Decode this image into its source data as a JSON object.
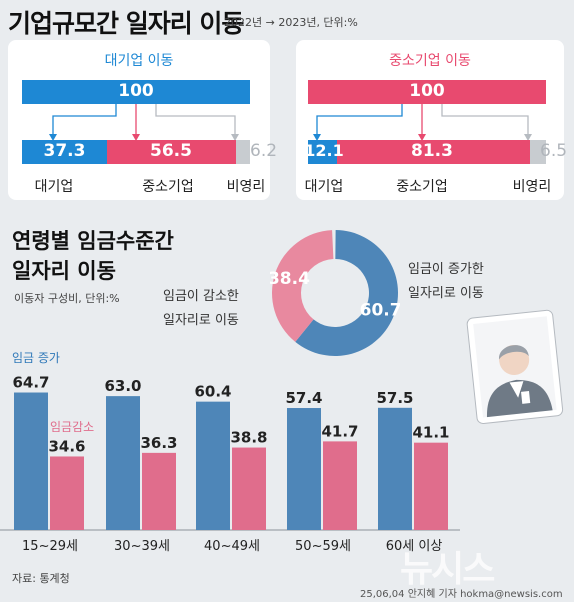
{
  "header": {
    "title": "기업규모간 일자리 이동",
    "subtitle": "2022년 → 2023년, 단위:%"
  },
  "colors": {
    "blue": "#1e88d4",
    "pink": "#e84a6f",
    "grey": "#c8ccd0",
    "steel_blue": "#4e86b8",
    "rose": "#e06d8c",
    "rose_light": "#e8899f"
  },
  "panels": [
    {
      "title": "대기업 이동",
      "total": "100",
      "segments": [
        {
          "label": "대기업",
          "value": 37.3,
          "text": "37.3"
        },
        {
          "label": "중소기업",
          "value": 56.5,
          "text": "56.5"
        },
        {
          "label": "비영리",
          "value": 6.2,
          "text": "6.2"
        }
      ]
    },
    {
      "title": "중소기업 이동",
      "total": "100",
      "segments": [
        {
          "label": "대기업",
          "value": 12.1,
          "text": "12.1"
        },
        {
          "label": "중소기업",
          "value": 81.3,
          "text": "81.3"
        },
        {
          "label": "비영리",
          "value": 6.5,
          "text": "6.5"
        }
      ]
    }
  ],
  "section2": {
    "title": "연령별 임금수준간\n일자리 이동",
    "subtitle": "이동자 구성비, 단위:%"
  },
  "chart_data": [
    {
      "type": "pie",
      "slices": [
        {
          "label": "임금이 증가한 일자리로 이동",
          "value": 60.7,
          "text": "60.7"
        },
        {
          "label": "임금이 감소한 일자리로 이동",
          "value": 38.4,
          "text": "38.4"
        }
      ],
      "label_increase": "임금이 증가한\n일자리로 이동",
      "label_decrease": "임금이 감소한\n일자리로 이동"
    },
    {
      "type": "bar",
      "categories": [
        "15~29세",
        "30~39세",
        "40~49세",
        "50~59세",
        "60세 이상"
      ],
      "series": [
        {
          "name": "임금 증가",
          "values": [
            64.7,
            63.0,
            60.4,
            57.4,
            57.5
          ],
          "texts": [
            "64.7",
            "63.0",
            "60.4",
            "57.4",
            "57.5"
          ]
        },
        {
          "name": "임금감소",
          "values": [
            34.6,
            36.3,
            38.8,
            41.7,
            41.1
          ],
          "texts": [
            "34.6",
            "36.3",
            "38.8",
            "41.7",
            "41.1"
          ]
        }
      ],
      "ylim": [
        0,
        80
      ]
    }
  ],
  "footer": {
    "source": "자료: 통계청",
    "credit": "25,06,04 안지혜 기자 hokma@newsis.com",
    "watermark": "뉴시스"
  }
}
